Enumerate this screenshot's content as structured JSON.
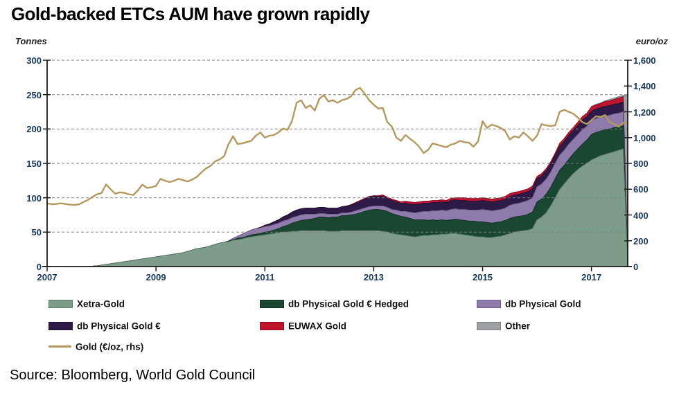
{
  "title": "Gold-backed ETCs AUM have grown rapidly",
  "source": "Source: Bloomberg, World Gold Council",
  "left_axis": {
    "unit": "Tonnes",
    "ticks": [
      0,
      50,
      100,
      150,
      200,
      250,
      300
    ]
  },
  "right_axis": {
    "unit": "euro/oz",
    "ticks": [
      {
        "label": "0",
        "value": 0
      },
      {
        "label": "200",
        "value": 200
      },
      {
        "label": "400",
        "value": 400
      },
      {
        "label": "600",
        "value": 600
      },
      {
        "label": "800",
        "value": 800
      },
      {
        "label": "1,000",
        "value": 1000
      },
      {
        "label": "1,200",
        "value": 1200
      },
      {
        "label": "1,400",
        "value": 1400
      },
      {
        "label": "1,600",
        "value": 1600
      }
    ]
  },
  "x_axis": {
    "tick_years": [
      2007,
      2009,
      2011,
      2013,
      2015,
      2017
    ]
  },
  "colors": {
    "grid": "#7F7F7F",
    "spine": "#1a1a1a",
    "tick_label": "#17375E",
    "background": "#FFFFFF",
    "title": "#000000"
  },
  "legend": {
    "items": [
      {
        "label": "Xetra-Gold",
        "color": "#7E9C8A",
        "edge": "#5E7F6D",
        "type": "area"
      },
      {
        "label": "db Physical Gold € Hedged",
        "color": "#1A4732",
        "edge": "#123224",
        "type": "area"
      },
      {
        "label": "db Physical Gold",
        "color": "#8E7BAB",
        "edge": "#6F5E8C",
        "type": "area"
      },
      {
        "label": "db Physical Gold €",
        "color": "#2E1A47",
        "edge": "#1F1233",
        "type": "area"
      },
      {
        "label": "EUWAX Gold",
        "color": "#C0132E",
        "edge": "#8E0F22",
        "type": "area"
      },
      {
        "label": "Other",
        "color": "#9EA0A3",
        "edge": "#7F8183",
        "type": "area"
      },
      {
        "label": "Gold (€/oz,  rhs)",
        "color": "#B3995D",
        "edge": "#B3995D",
        "type": "line"
      }
    ]
  },
  "chart_data": {
    "type": "area",
    "stacked": true,
    "title": "Gold-backed ETCs AUM have grown rapidly",
    "xlabel": "",
    "ylabel_left": "Tonnes",
    "ylabel_right": "euro/oz",
    "x_start_year": 2007,
    "x_months_per_point": 1,
    "x_end_year": 2017.7,
    "ylim_left": [
      0,
      300
    ],
    "ylim_right": [
      0,
      1600
    ],
    "grid": "horizontal-dashed",
    "legend_position": "bottom",
    "series": [
      {
        "name": "Xetra-Gold",
        "type": "area",
        "axis": "left",
        "color": "#7E9C8A",
        "edge": "#5E7F6D",
        "values": [
          0,
          0,
          0,
          0,
          0,
          0,
          0,
          0,
          0,
          0,
          0.5,
          1,
          2,
          3,
          4,
          5,
          6,
          7,
          8,
          9,
          10,
          11,
          12,
          13,
          14,
          15,
          16,
          17,
          18,
          19,
          20,
          22,
          24,
          26,
          27,
          28,
          30,
          32,
          34,
          35,
          36,
          38,
          39,
          40,
          42,
          43,
          44,
          45,
          46,
          47,
          48,
          49,
          50,
          50,
          51,
          51,
          52,
          52,
          52,
          52,
          52,
          52,
          51,
          51,
          51,
          52,
          52,
          52,
          52,
          52,
          52,
          52,
          52,
          52,
          51,
          50,
          48,
          47,
          46,
          45,
          44,
          43,
          44,
          45,
          45,
          46,
          46,
          47,
          47,
          48,
          48,
          47,
          46,
          45,
          44,
          43,
          43,
          42,
          42,
          43,
          44,
          46,
          48,
          50,
          51,
          52,
          53,
          55,
          68,
          72,
          78,
          88,
          100,
          112,
          120,
          128,
          135,
          141,
          146,
          150,
          155,
          158,
          161,
          163,
          165,
          167,
          169,
          171,
          0
        ]
      },
      {
        "name": "db Physical Gold € Hedged",
        "type": "area",
        "axis": "left",
        "color": "#1A4732",
        "edge": "#123224",
        "values": [
          0,
          0,
          0,
          0,
          0,
          0,
          0,
          0,
          0,
          0,
          0,
          0,
          0,
          0,
          0,
          0,
          0,
          0,
          0,
          0,
          0,
          0,
          0,
          0,
          0,
          0,
          0,
          0,
          0,
          0,
          0,
          0,
          0,
          0,
          0,
          0,
          0,
          0,
          0,
          0,
          1,
          1,
          2,
          2,
          2,
          3,
          3,
          3,
          4,
          4,
          5,
          6,
          8,
          10,
          12,
          14,
          15,
          16,
          17,
          18,
          20,
          20,
          20,
          21,
          21,
          22,
          22,
          23,
          24,
          26,
          28,
          30,
          31,
          31,
          31,
          30,
          29,
          28,
          27,
          27,
          26,
          25,
          24,
          23,
          22,
          22,
          21,
          21,
          20,
          20,
          21,
          21,
          21,
          21,
          22,
          22,
          22,
          22,
          21,
          21,
          21,
          21,
          22,
          22,
          22,
          22,
          23,
          24,
          26,
          26,
          27,
          27,
          28,
          28,
          27,
          28,
          29,
          30,
          32,
          34,
          37,
          37,
          36,
          36,
          35,
          35,
          34,
          34,
          0
        ]
      },
      {
        "name": "db Physical Gold",
        "type": "area",
        "axis": "left",
        "color": "#8E7BAB",
        "edge": "#6F5E8C",
        "values": [
          0,
          0,
          0,
          0,
          0,
          0,
          0,
          0,
          0,
          0,
          0,
          0,
          0,
          0,
          0,
          0,
          0,
          0,
          0,
          0,
          0,
          0,
          0,
          0,
          0,
          0,
          0,
          0,
          0,
          0,
          0,
          0,
          0,
          0,
          0,
          0,
          0,
          0,
          0,
          0,
          0,
          2,
          3,
          5,
          6,
          7,
          8,
          8,
          8,
          8,
          8,
          8,
          8,
          8,
          8,
          8,
          8,
          8,
          7,
          6,
          5,
          5,
          5,
          4,
          4,
          4,
          4,
          4,
          5,
          5,
          5,
          5,
          5,
          5,
          6,
          6,
          6,
          7,
          7,
          8,
          9,
          10,
          11,
          12,
          13,
          13,
          14,
          14,
          14,
          15,
          15,
          15,
          16,
          16,
          16,
          17,
          18,
          18,
          18,
          18,
          18,
          18,
          19,
          19,
          19,
          20,
          20,
          21,
          22,
          22,
          22,
          22,
          22,
          22,
          22,
          22,
          21,
          21,
          21,
          20,
          20,
          20,
          20,
          20,
          20,
          20,
          20,
          20,
          0
        ]
      },
      {
        "name": "db Physical Gold €",
        "type": "area",
        "axis": "left",
        "color": "#2E1A47",
        "edge": "#1F1233",
        "values": [
          0,
          0,
          0,
          0,
          0,
          0,
          0,
          0,
          0,
          0,
          0,
          0,
          0,
          0,
          0,
          0,
          0,
          0,
          0,
          0,
          0,
          0,
          0,
          0,
          0,
          0,
          0,
          0,
          0,
          0,
          0,
          0,
          0,
          0,
          0,
          0,
          0,
          0,
          0,
          0,
          0,
          0,
          0,
          0,
          0,
          0,
          0,
          1,
          2,
          3,
          4,
          5,
          6,
          7,
          8,
          9,
          9,
          9,
          9,
          9,
          9,
          9,
          9,
          9,
          9,
          9,
          10,
          10,
          11,
          12,
          13,
          14,
          14,
          14,
          14,
          13,
          13,
          12,
          12,
          12,
          12,
          12,
          12,
          12,
          12,
          12,
          12,
          12,
          12,
          13,
          13,
          13,
          13,
          13,
          13,
          13,
          13,
          13,
          13,
          13,
          13,
          13,
          13,
          13,
          13,
          13,
          13,
          13,
          12,
          12,
          12,
          12,
          12,
          13,
          13,
          13,
          13,
          13,
          14,
          14,
          14,
          14,
          14,
          14,
          14,
          14,
          14,
          14,
          0
        ]
      },
      {
        "name": "EUWAX Gold",
        "type": "area",
        "axis": "left",
        "color": "#C0132E",
        "edge": "#8E0F22",
        "values": [
          0,
          0,
          0,
          0,
          0,
          0,
          0,
          0,
          0,
          0,
          0,
          0,
          0,
          0,
          0,
          0,
          0,
          0,
          0,
          0,
          0,
          0,
          0,
          0,
          0,
          0,
          0,
          0,
          0,
          0,
          0,
          0,
          0,
          0,
          0,
          0,
          0,
          0,
          0,
          0,
          0,
          0,
          0,
          0,
          0,
          0,
          0,
          0,
          0,
          0,
          0,
          0,
          0,
          0,
          0,
          0,
          0,
          0,
          0,
          0,
          0,
          0,
          0,
          0,
          0,
          0,
          0,
          1,
          1,
          1,
          1,
          1,
          1,
          1,
          2,
          2,
          2,
          2,
          2,
          3,
          3,
          3,
          3,
          3,
          3,
          3,
          3,
          3,
          3,
          3,
          3,
          4,
          4,
          4,
          4,
          4,
          4,
          4,
          4,
          4,
          4,
          4,
          4,
          4,
          4,
          4,
          4,
          4,
          3,
          3,
          3,
          3,
          3,
          4,
          4,
          4,
          4,
          5,
          5,
          5,
          6,
          6,
          6,
          7,
          7,
          7,
          8,
          8,
          0
        ]
      },
      {
        "name": "Other",
        "type": "area",
        "axis": "left",
        "color": "#9EA0A3",
        "edge": "#7F8183",
        "values": [
          0,
          0,
          0,
          0,
          0,
          0,
          0,
          0,
          0,
          0,
          0,
          0,
          0,
          0,
          0,
          0,
          0,
          0,
          0,
          0,
          0,
          0,
          0,
          0,
          0,
          0,
          0,
          0,
          0,
          0,
          0,
          0,
          0,
          0,
          0,
          0,
          0,
          0,
          0,
          0,
          0,
          0,
          0,
          0,
          0,
          0,
          0,
          0,
          0,
          0,
          0,
          0,
          0,
          0,
          0,
          0,
          0,
          0,
          0,
          0,
          0,
          0,
          0,
          0,
          0,
          0,
          0,
          0,
          0,
          0,
          0,
          0,
          0,
          0,
          0,
          0,
          0,
          0,
          0,
          0,
          0,
          0,
          0,
          0,
          0,
          0,
          0,
          0,
          0,
          0,
          0,
          0,
          0,
          0,
          0,
          0,
          0,
          0,
          0,
          0,
          0,
          0,
          0,
          0,
          0,
          0,
          0,
          0,
          0,
          0,
          0,
          0,
          0,
          0,
          0,
          0,
          0,
          0,
          0,
          0,
          1,
          1,
          1,
          1,
          2,
          2,
          2,
          2,
          250
        ]
      },
      {
        "name": "Gold (€/oz, rhs)",
        "type": "line",
        "axis": "right",
        "color": "#B3995D",
        "edge": "#B3995D",
        "values": [
          490,
          483,
          485,
          490,
          486,
          480,
          478,
          482,
          500,
          516,
          540,
          560,
          570,
          637,
          600,
          565,
          575,
          572,
          560,
          555,
          590,
          635,
          610,
          615,
          625,
          680,
          665,
          655,
          665,
          680,
          670,
          660,
          675,
          695,
          730,
          760,
          780,
          815,
          830,
          855,
          950,
          1010,
          950,
          955,
          965,
          975,
          1015,
          1040,
          1000,
          1015,
          1020,
          1040,
          1070,
          1060,
          1130,
          1270,
          1290,
          1230,
          1250,
          1210,
          1300,
          1330,
          1280,
          1290,
          1270,
          1290,
          1300,
          1320,
          1370,
          1385,
          1340,
          1290,
          1255,
          1225,
          1230,
          1120,
          1085,
          1000,
          975,
          1020,
          990,
          965,
          930,
          880,
          905,
          955,
          945,
          935,
          925,
          945,
          955,
          975,
          965,
          960,
          930,
          970,
          1127,
          1075,
          1100,
          1090,
          1075,
          1050,
          985,
          1010,
          1000,
          1040,
          1010,
          975,
          1015,
          1105,
          1095,
          1090,
          1095,
          1200,
          1215,
          1200,
          1185,
          1155,
          1120,
          1105,
          1135,
          1165,
          1160,
          1175,
          1120,
          1105,
          1085,
          1115,
          1115
        ]
      }
    ]
  }
}
